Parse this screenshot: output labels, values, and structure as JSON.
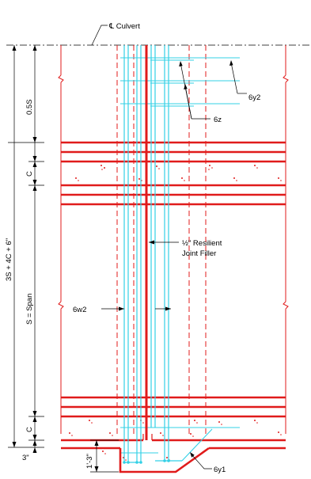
{
  "labels": {
    "centerline": "℄ Culvert",
    "top_zone": "0.5S",
    "c_upper": "C",
    "span": "S = Span",
    "c_lower": "C",
    "three_in": "3\"",
    "overall": "3S + 4C + 6\"",
    "bar_6y2": "6y2",
    "bar_6z": "6z",
    "filler_line1": "½\" Resilient",
    "filler_line2": "Joint Filler",
    "bar_6w2": "6w2",
    "bar_6y1": "6y1",
    "depth": "1'-3\""
  },
  "colors": {
    "reinforcement_main": "#e01b1b",
    "reinforcement_secondary": "#33d0e6",
    "dimension": "#000000"
  }
}
